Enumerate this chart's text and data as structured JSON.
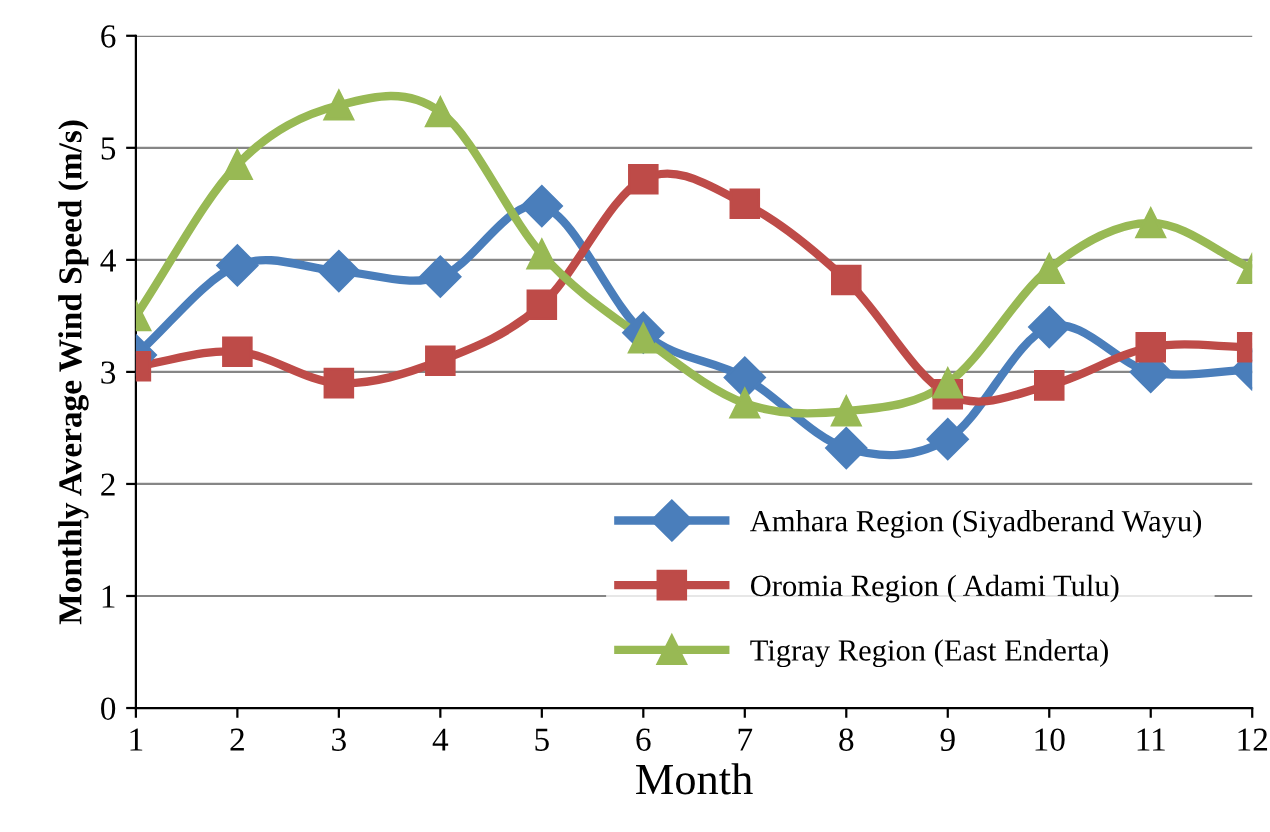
{
  "chart_data": {
    "type": "line",
    "xlabel": "Month",
    "ylabel": "Monthly Average Wind Speed (m/s)",
    "x": [
      1,
      2,
      3,
      4,
      5,
      6,
      7,
      8,
      9,
      10,
      11,
      12
    ],
    "series": [
      {
        "name": "Amhara Region (Siyadberand Wayu)",
        "color": "#4a7ebb",
        "marker": "diamond",
        "values": [
          3.15,
          3.95,
          3.9,
          3.85,
          4.48,
          3.35,
          2.95,
          2.32,
          2.4,
          3.4,
          3.0,
          3.02
        ]
      },
      {
        "name": "Oromia Region ( Adami Tulu)",
        "color": "#be4b48",
        "marker": "square",
        "values": [
          3.05,
          3.18,
          2.9,
          3.1,
          3.6,
          4.72,
          4.5,
          3.82,
          2.8,
          2.88,
          3.22,
          3.22
        ]
      },
      {
        "name": "Tigray Region (East Enderta)",
        "color": "#98b954",
        "marker": "triangle",
        "values": [
          3.5,
          4.85,
          5.38,
          5.32,
          4.05,
          3.3,
          2.72,
          2.65,
          2.9,
          3.92,
          4.33,
          3.92
        ]
      }
    ],
    "xlim": [
      1,
      12
    ],
    "xticks": [
      1,
      2,
      3,
      4,
      5,
      6,
      7,
      8,
      9,
      10,
      11,
      12
    ],
    "ylim": [
      0,
      6
    ],
    "yticks": [
      0,
      1,
      2,
      3,
      4,
      5,
      6
    ],
    "grid": "y",
    "legend": "bottom right",
    "line_style": "solid"
  }
}
